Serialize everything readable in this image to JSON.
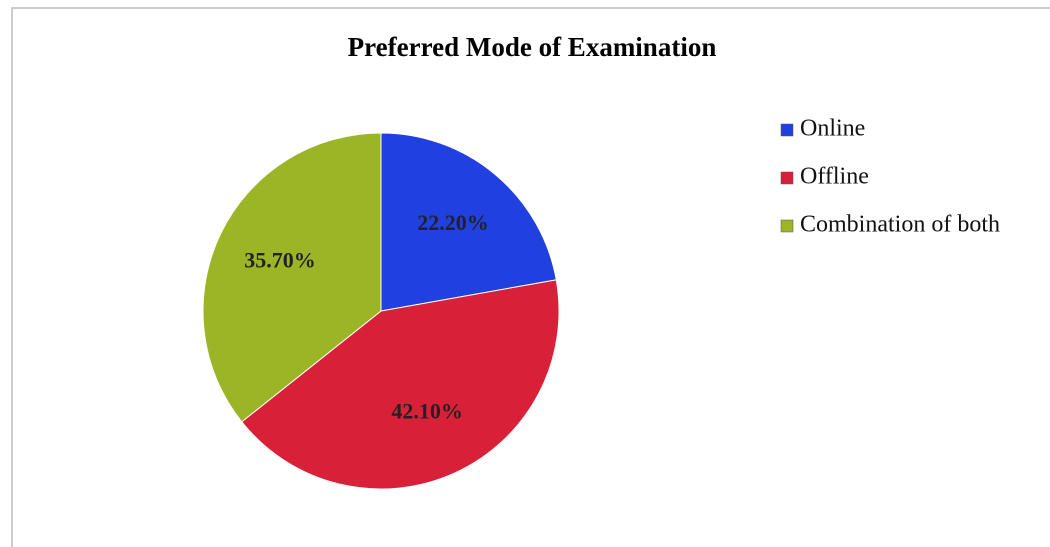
{
  "chart_data": {
    "type": "pie",
    "title": "Preferred Mode of Examination",
    "categories": [
      "Online",
      "Offline",
      "Combination of both"
    ],
    "values": [
      22.2,
      42.1,
      35.7
    ],
    "value_labels": [
      "22.20%",
      "42.10%",
      "35.70%"
    ],
    "colors": [
      "#2040e0",
      "#d82038",
      "#9cb526"
    ],
    "legend": "right"
  }
}
